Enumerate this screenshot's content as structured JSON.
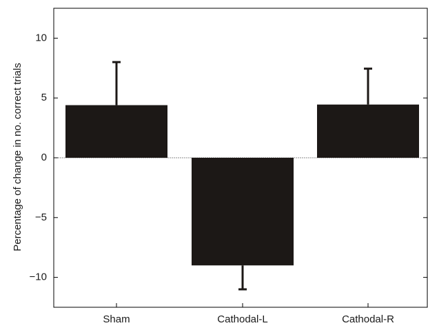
{
  "chart_data": {
    "type": "bar",
    "categories": [
      "Sham",
      "Cathodal-L",
      "Cathodal-R"
    ],
    "values": [
      4.4,
      -9.0,
      4.45
    ],
    "error_bars": [
      3.6,
      2.0,
      3.0
    ],
    "title": "",
    "xlabel": "",
    "ylabel": "Percentage of change in no. correct trials",
    "ylim": [
      -12.5,
      12.5
    ],
    "yticks": [
      10,
      5,
      0,
      -5,
      -10
    ],
    "ytick_labels": [
      "10",
      "5",
      "0",
      "−5",
      "−10"
    ],
    "grid": false,
    "zero_line": "dotted",
    "colors": {
      "bar": "#1c1816",
      "axis": "#000000",
      "zero_line": "#888888"
    }
  }
}
